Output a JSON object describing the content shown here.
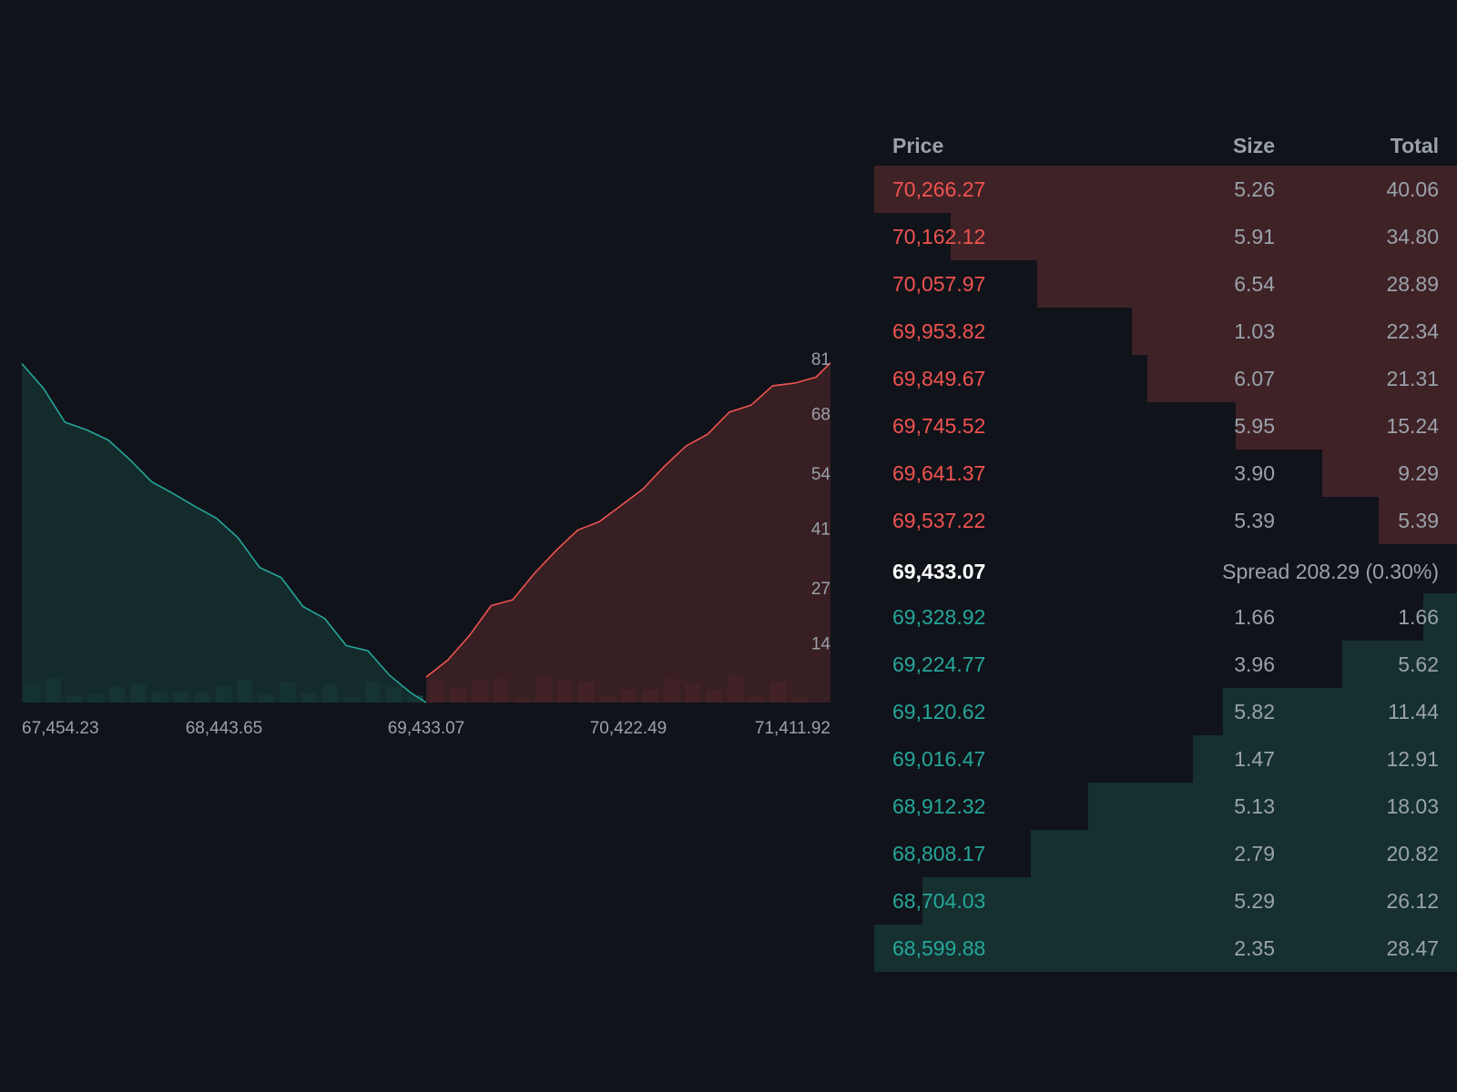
{
  "colors": {
    "background": "#10131a",
    "ask": "#ef5350",
    "ask_fill": "#3f2226",
    "bid": "#26a69a",
    "bid_fill": "#15302f",
    "muted_text": "#9aa1ab",
    "mid_price": "#ffffff"
  },
  "chart_data": {
    "type": "area",
    "x_tick_labels": [
      "67,454.23",
      "68,443.65",
      "69,433.07",
      "70,422.49",
      "71,411.92"
    ],
    "x_ticks": [
      67454.23,
      68443.65,
      69433.07,
      70422.49,
      71411.92
    ],
    "xlim": [
      67454.23,
      71411.92
    ],
    "y_tick_labels": [
      "14",
      "27",
      "41",
      "54",
      "68",
      "81"
    ],
    "y_ticks": [
      14,
      27,
      41,
      54,
      68,
      81
    ],
    "ylim": [
      0,
      90
    ],
    "grid": false,
    "mid_price": 69433.07,
    "series": [
      {
        "side": "bid",
        "x": [
          67454.23,
          67560,
          67665,
          67771,
          67877,
          67983,
          68089,
          68195,
          68301,
          68407,
          68512,
          68618,
          68724,
          68830,
          68936,
          69042,
          69148,
          69254,
          69360,
          69433.07
        ],
        "cumulative": [
          79.8,
          74,
          66,
          64.2,
          61.8,
          57.2,
          52,
          49.2,
          46.2,
          43.4,
          38.8,
          31.8,
          29.4,
          22.6,
          19.8,
          13.4,
          12.2,
          6.4,
          2.2,
          0
        ]
      },
      {
        "side": "ask",
        "x": [
          69433.07,
          69539,
          69645,
          69751,
          69857,
          69963,
          70069,
          70175,
          70281,
          70387,
          70493,
          70599,
          70705,
          70811,
          70917,
          71023,
          71129,
          71235,
          71341,
          71411.92
        ],
        "cumulative": [
          6,
          10,
          15.8,
          22.8,
          24.2,
          30.4,
          35.8,
          40.6,
          42.6,
          46.4,
          50.2,
          55.6,
          60.4,
          63.2,
          68.4,
          70,
          74.6,
          75.2,
          76.6,
          80
        ]
      }
    ],
    "volume_bars": {
      "bid": [
        4.6,
        6.4,
        1.8,
        2.3,
        4.1,
        4.9,
        2.5,
        2.7,
        2.5,
        4.2,
        6,
        2.2,
        5.2,
        2.4,
        4.6,
        1.5,
        5.5,
        4.2,
        1.8
      ],
      "ask": [
        5.8,
        3.8,
        6,
        6.2,
        1,
        6.6,
        5.8,
        5.2,
        1.5,
        3.4,
        3.4,
        6.2,
        4.9,
        3.1,
        7.2,
        1.5,
        5.4,
        1.3
      ]
    }
  },
  "order_book": {
    "headers": {
      "price": "Price",
      "size": "Size",
      "total": "Total"
    },
    "asks": [
      {
        "price": "70,266.27",
        "size": "5.26",
        "total": "40.06",
        "depth": 1.0
      },
      {
        "price": "70,162.12",
        "size": "5.91",
        "total": "34.80",
        "depth": 0.869
      },
      {
        "price": "70,057.97",
        "size": "6.54",
        "total": "28.89",
        "depth": 0.721
      },
      {
        "price": "69,953.82",
        "size": "1.03",
        "total": "22.34",
        "depth": 0.558
      },
      {
        "price": "69,849.67",
        "size": "6.07",
        "total": "21.31",
        "depth": 0.532
      },
      {
        "price": "69,745.52",
        "size": "5.95",
        "total": "15.24",
        "depth": 0.38
      },
      {
        "price": "69,641.37",
        "size": "3.90",
        "total": "9.29",
        "depth": 0.232
      },
      {
        "price": "69,537.22",
        "size": "5.39",
        "total": "5.39",
        "depth": 0.135
      }
    ],
    "mid": {
      "price": "69,433.07",
      "spread": "Spread 208.29 (0.30%)"
    },
    "bids": [
      {
        "price": "69,328.92",
        "size": "1.66",
        "total": "1.66",
        "depth": 0.058
      },
      {
        "price": "69,224.77",
        "size": "3.96",
        "total": "5.62",
        "depth": 0.197
      },
      {
        "price": "69,120.62",
        "size": "5.82",
        "total": "11.44",
        "depth": 0.402
      },
      {
        "price": "69,016.47",
        "size": "1.47",
        "total": "12.91",
        "depth": 0.453
      },
      {
        "price": "68,912.32",
        "size": "5.13",
        "total": "18.03",
        "depth": 0.633
      },
      {
        "price": "68,808.17",
        "size": "2.79",
        "total": "20.82",
        "depth": 0.731
      },
      {
        "price": "68,704.03",
        "size": "5.29",
        "total": "26.12",
        "depth": 0.917
      },
      {
        "price": "68,599.88",
        "size": "2.35",
        "total": "28.47",
        "depth": 1.0
      }
    ]
  }
}
